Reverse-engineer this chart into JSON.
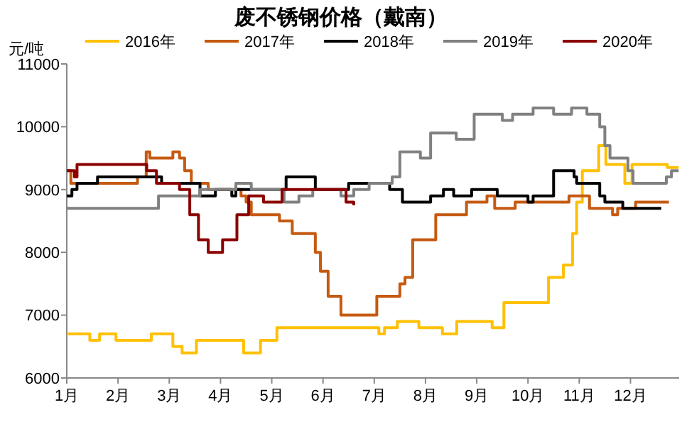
{
  "chart_data": {
    "type": "step",
    "title": "废不锈钢价格（戴南）",
    "ylabel": "元/吨",
    "xlim": [
      1,
      12.95
    ],
    "xticks": [
      {
        "value": 1,
        "label": "1月"
      },
      {
        "value": 2,
        "label": "2月"
      },
      {
        "value": 3,
        "label": "3月"
      },
      {
        "value": 4,
        "label": "4月"
      },
      {
        "value": 5,
        "label": "5月"
      },
      {
        "value": 6,
        "label": "6月"
      },
      {
        "value": 7,
        "label": "7月"
      },
      {
        "value": 8,
        "label": "8月"
      },
      {
        "value": 9,
        "label": "9月"
      },
      {
        "value": 10,
        "label": "10月"
      },
      {
        "value": 11,
        "label": "11月"
      },
      {
        "value": 12,
        "label": "12月"
      }
    ],
    "ylim": [
      6000,
      11000
    ],
    "yticks": [
      6000,
      7000,
      8000,
      9000,
      10000,
      11000
    ],
    "grid": false,
    "legend": "top",
    "marker": "none",
    "line_style": "solid",
    "series": [
      {
        "name": "2016年",
        "color": "#ffc000",
        "x": [
          1,
          1.45,
          1.64,
          1.96,
          2.65,
          3.07,
          3.25,
          3.53,
          4.45,
          4.78,
          5.1,
          7.09,
          7.2,
          7.45,
          7.87,
          8.33,
          8.61,
          9.3,
          9.53,
          10.4,
          10.69,
          10.87,
          10.95,
          11.06,
          11.15,
          11.38,
          11.52,
          11.89,
          12.03,
          12.72,
          12.94
        ],
        "values": [
          6700,
          6600,
          6700,
          6600,
          6700,
          6500,
          6400,
          6600,
          6400,
          6600,
          6800,
          6700,
          6800,
          6900,
          6800,
          6700,
          6900,
          6800,
          7200,
          7600,
          7800,
          8300,
          8800,
          9300,
          9300,
          9700,
          9400,
          9100,
          9400,
          9350,
          9350
        ]
      },
      {
        "name": "2017年",
        "color": "#c55a11",
        "x": [
          1,
          1.08,
          2.38,
          2.55,
          2.62,
          3.07,
          3.2,
          3.3,
          3.43,
          3.76,
          4.4,
          4.5,
          4.6,
          5.15,
          5.4,
          5.85,
          5.95,
          6.1,
          6.3,
          6.35,
          7.05,
          7.5,
          7.6,
          7.75,
          8.2,
          8.8,
          9.2,
          9.35,
          9.75,
          10.8,
          11.2,
          11.65,
          11.75,
          12.1,
          12.75
        ],
        "values": [
          9300,
          9100,
          9200,
          9600,
          9500,
          9600,
          9500,
          9300,
          9100,
          9000,
          8900,
          8800,
          8600,
          8500,
          8300,
          8000,
          7700,
          7300,
          7300,
          7000,
          7300,
          7500,
          7600,
          8200,
          8600,
          8800,
          8900,
          8700,
          8800,
          8900,
          8700,
          8600,
          8700,
          8800,
          8800
        ]
      },
      {
        "name": "2018年",
        "color": "#000000",
        "x": [
          1,
          1.1,
          1.2,
          1.6,
          2.85,
          3.6,
          3.9,
          4.22,
          4.3,
          5.28,
          5.85,
          6.5,
          7.3,
          7.55,
          8.1,
          8.35,
          8.55,
          8.9,
          9.1,
          9.4,
          10.0,
          10.1,
          10.5,
          10.9,
          10.95,
          11.4,
          11.5,
          11.85,
          12.6
        ],
        "values": [
          8900,
          9000,
          9100,
          9200,
          9100,
          8900,
          9000,
          8900,
          9000,
          9200,
          9000,
          9100,
          9000,
          8800,
          8900,
          9000,
          8900,
          9000,
          9000,
          8900,
          8800,
          8900,
          9300,
          9200,
          9100,
          8900,
          8800,
          8700,
          8700
        ]
      },
      {
        "name": "2019年",
        "color": "#808080",
        "x": [
          1,
          2.79,
          3.6,
          4.3,
          4.6,
          5.24,
          5.53,
          5.8,
          6.35,
          6.6,
          6.9,
          7.35,
          7.5,
          7.9,
          8.1,
          8.6,
          8.95,
          9.5,
          9.7,
          10.1,
          10.5,
          10.85,
          11.15,
          11.4,
          11.5,
          11.6,
          11.95,
          12.05,
          12.45,
          12.7,
          12.8,
          12.94
        ],
        "values": [
          8700,
          8900,
          9000,
          9100,
          9000,
          8800,
          8900,
          9000,
          8900,
          9000,
          9100,
          9200,
          9600,
          9500,
          9900,
          9800,
          10200,
          10100,
          10200,
          10300,
          10200,
          10300,
          10200,
          10000,
          9700,
          9500,
          9300,
          9100,
          9100,
          9200,
          9300,
          9300
        ]
      },
      {
        "name": "2020年",
        "color": "#8b0000",
        "x": [
          1,
          1.15,
          1.2,
          2.56,
          2.75,
          3.2,
          3.4,
          3.57,
          3.76,
          4.04,
          4.32,
          4.55,
          4.84,
          5.2,
          5.3,
          6.45,
          6.6
        ],
        "values": [
          9300,
          9200,
          9400,
          9300,
          9100,
          9000,
          8600,
          8200,
          8000,
          8200,
          8600,
          8900,
          8800,
          9000,
          9000,
          8800,
          8750
        ]
      }
    ]
  }
}
